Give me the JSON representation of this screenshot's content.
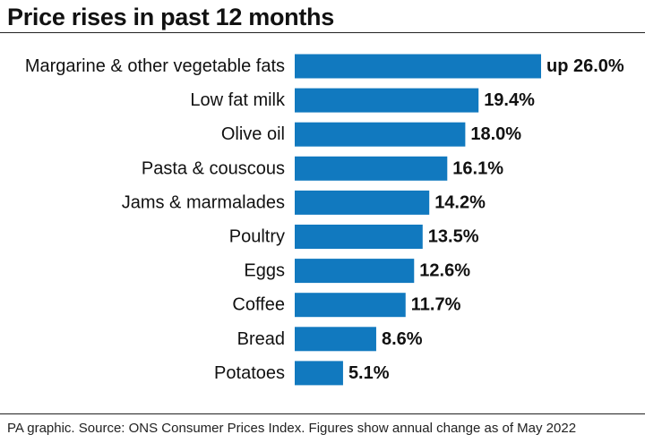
{
  "title": "Price rises in past 12 months",
  "footer": "PA graphic. Source: ONS Consumer Prices Index. Figures show annual change as of May 2022",
  "colors": {
    "bar": "#1179bf",
    "text": "#111111",
    "rule": "#222222"
  },
  "chart_data": {
    "type": "bar",
    "orientation": "horizontal",
    "categories": [
      "Margarine & other vegetable fats",
      "Low fat milk",
      "Olive oil",
      "Pasta & couscous",
      "Jams & marmalades",
      "Poultry",
      "Eggs",
      "Coffee",
      "Bread",
      "Potatoes"
    ],
    "values": [
      26.0,
      19.4,
      18.0,
      16.1,
      14.2,
      13.5,
      12.6,
      11.7,
      8.6,
      5.1
    ],
    "value_labels": [
      "up 26.0%",
      "19.4%",
      "18.0%",
      "16.1%",
      "14.2%",
      "13.5%",
      "12.6%",
      "11.7%",
      "8.6%",
      "5.1%"
    ],
    "unit": "%",
    "xlim": [
      0,
      26
    ],
    "grid": false,
    "legend": "none"
  }
}
